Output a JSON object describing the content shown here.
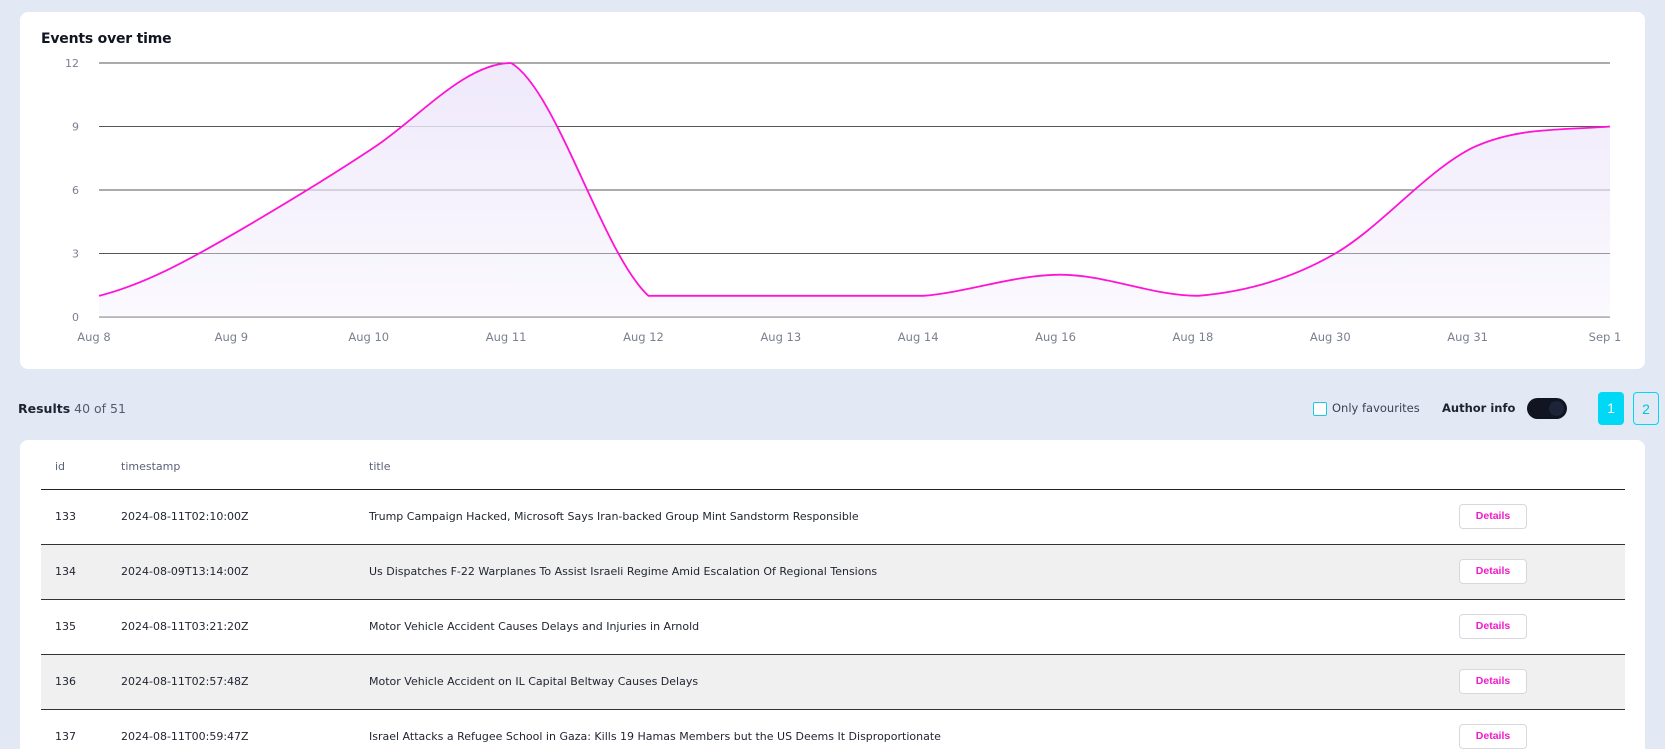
{
  "chart": {
    "title": "Events over time"
  },
  "chart_data": {
    "type": "area",
    "title": "Events over time",
    "categories": [
      "Aug 8",
      "Aug 9",
      "Aug 10",
      "Aug 11",
      "Aug 12",
      "Aug 13",
      "Aug 14",
      "Aug 16",
      "Aug 18",
      "Aug 30",
      "Aug 31",
      "Sep 1"
    ],
    "series": [
      {
        "values": [
          1,
          4,
          8,
          12,
          1,
          1,
          1,
          2,
          1,
          3,
          8,
          9
        ]
      }
    ],
    "y_ticks": [
      "0",
      "3",
      "6",
      "9",
      "12"
    ],
    "ylim": [
      0,
      12
    ],
    "grid": true,
    "line_color": "#ff14d5",
    "fill_color": "#efe9fb"
  },
  "results": {
    "label": "Results",
    "count": "40 of 51",
    "only_favourites_label": "Only favourites",
    "author_info_label": "Author info",
    "author_info_on": true,
    "pages": [
      "1",
      "2"
    ],
    "current_page": "1"
  },
  "table": {
    "columns": [
      "id",
      "timestamp",
      "title"
    ],
    "details_label": "Details",
    "rows": [
      {
        "id": "133",
        "timestamp": "2024-08-11T02:10:00Z",
        "title": "Trump Campaign Hacked, Microsoft Says Iran-backed Group Mint Sandstorm Responsible"
      },
      {
        "id": "134",
        "timestamp": "2024-08-09T13:14:00Z",
        "title": "Us Dispatches F-22 Warplanes To Assist Israeli Regime Amid Escalation Of Regional Tensions"
      },
      {
        "id": "135",
        "timestamp": "2024-08-11T03:21:20Z",
        "title": "Motor Vehicle Accident Causes Delays and Injuries in Arnold"
      },
      {
        "id": "136",
        "timestamp": "2024-08-11T02:57:48Z",
        "title": "Motor Vehicle Accident on IL Capital Beltway Causes Delays"
      },
      {
        "id": "137",
        "timestamp": "2024-08-11T00:59:47Z",
        "title": "Israel Attacks a Refugee School in Gaza: Kills 19 Hamas Members but the US Deems It Disproportionate"
      }
    ]
  }
}
